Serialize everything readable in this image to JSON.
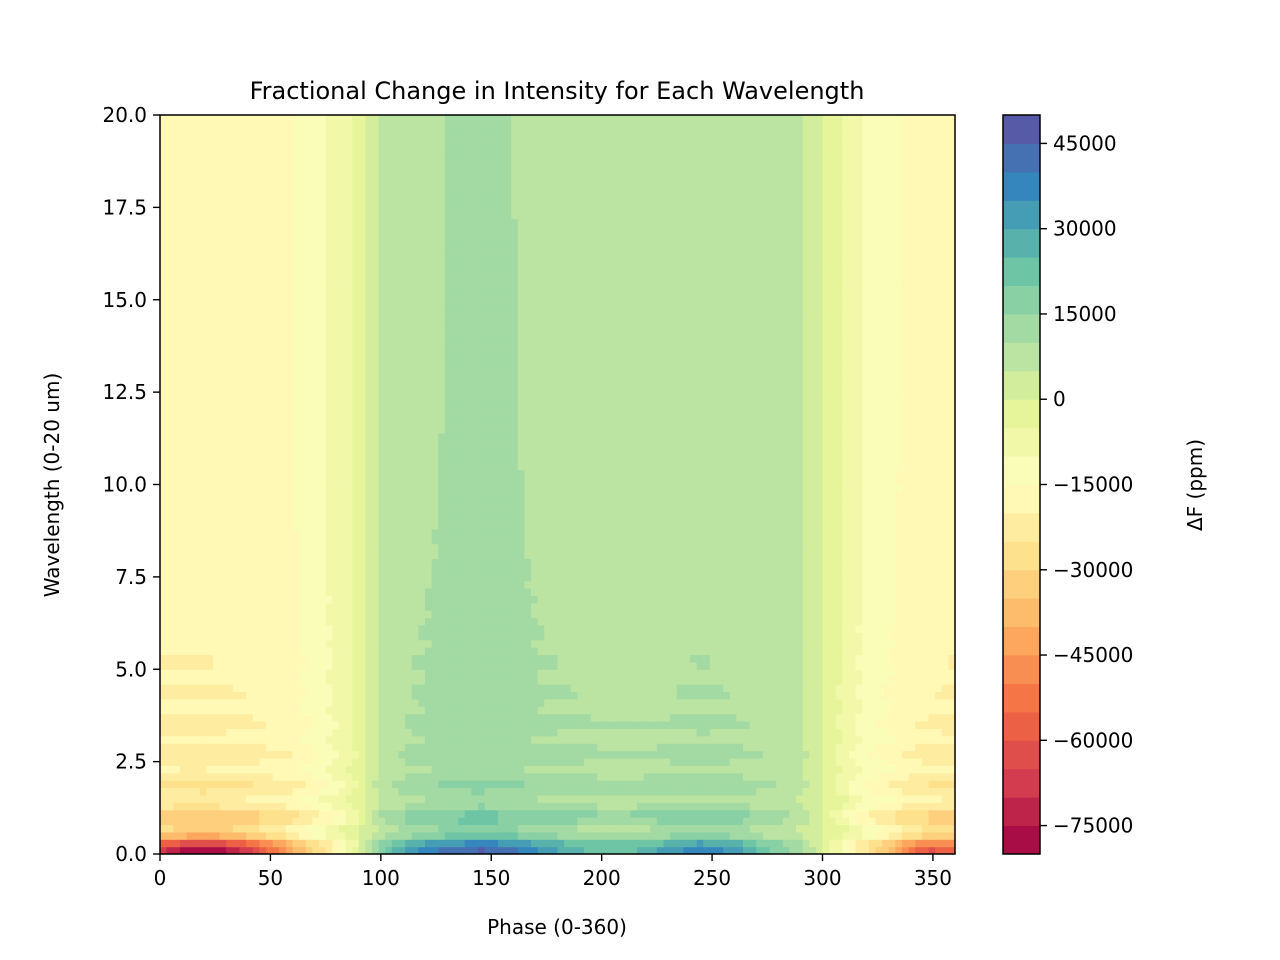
{
  "chart_data": {
    "type": "heatmap",
    "title": "Fractional Change in Intensity for Each Wavelength",
    "xlabel": "Phase (0-360)",
    "ylabel": "Wavelength (0-20 um)",
    "colorbar_label": "ΔF (ppm)",
    "xlim": [
      0,
      360
    ],
    "ylim": [
      0,
      20
    ],
    "x_ticks": [
      0,
      50,
      100,
      150,
      200,
      250,
      300,
      350
    ],
    "x_tick_labels": [
      "0",
      "50",
      "100",
      "150",
      "200",
      "250",
      "300",
      "350"
    ],
    "y_ticks": [
      0,
      2.5,
      5,
      7.5,
      10,
      12.5,
      15,
      17.5,
      20
    ],
    "y_tick_labels": [
      "0.0",
      "2.5",
      "5.0",
      "7.5",
      "10.0",
      "12.5",
      "15.0",
      "17.5",
      "20.0"
    ],
    "colorbar_range": [
      -80000,
      50000
    ],
    "colorbar_ticks": [
      -75000,
      -60000,
      -45000,
      -30000,
      -15000,
      0,
      15000,
      30000,
      45000
    ],
    "colorbar_tick_labels": [
      "−75000",
      "−60000",
      "−45000",
      "−30000",
      "−15000",
      "0",
      "15000",
      "30000",
      "45000"
    ],
    "colorbar_levels": 26,
    "colormap": "Spectral",
    "phase_profile": {
      "phase": [
        0,
        20,
        40,
        60,
        75,
        88,
        100,
        115,
        145,
        175,
        200,
        225,
        245,
        265,
        290,
        307,
        320,
        340,
        360
      ],
      "delta_f_ppm_long_wavelength": [
        -18000,
        -18000,
        -17000,
        -15000,
        -10000,
        -4000,
        5000,
        9000,
        11000,
        9000,
        8000,
        8000,
        9000,
        8000,
        5000,
        -4000,
        -11000,
        -16000,
        -18000
      ]
    },
    "short_wavelength_extremes": {
      "minimum_ppm": -78000,
      "minimum_phase": 20,
      "maximum_ppm": 42000,
      "maximum_phase": 145,
      "wavelength_um": 0.3
    }
  }
}
